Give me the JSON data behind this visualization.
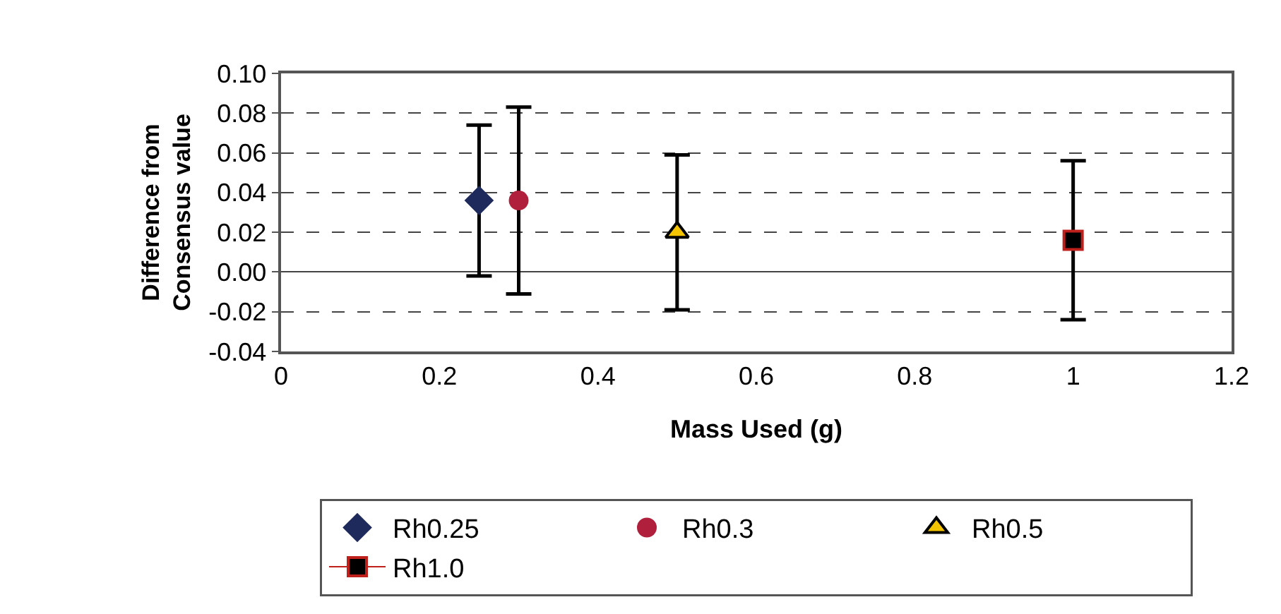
{
  "chart_data": {
    "type": "scatter",
    "xlabel": "Mass Used (g)",
    "ylabel": "Difference from Consensus value",
    "xlim": [
      0,
      1.2
    ],
    "xticks": [
      0,
      0.2,
      0.4,
      0.6,
      0.8,
      1,
      1.2
    ],
    "ylim": [
      -0.04,
      0.1
    ],
    "yticks": [
      {
        "value": -0.04,
        "label": "-0.04"
      },
      {
        "value": -0.02,
        "label": "-0.02"
      },
      {
        "value": 0,
        "label": "0.00"
      },
      {
        "value": 0.02,
        "label": "0.02"
      },
      {
        "value": 0.04,
        "label": "0.04"
      },
      {
        "value": 0.06,
        "label": "0.06"
      },
      {
        "value": 0.08,
        "label": "0.08"
      },
      {
        "value": 0.1,
        "label": "0.10"
      }
    ],
    "grid": "y",
    "legend": "bottom",
    "series": [
      {
        "name": "Rh0.25",
        "color": "#1f2a5c",
        "marker": "diamond",
        "x": [
          0.25
        ],
        "values": [
          0.036
        ],
        "errors": [
          0.038
        ]
      },
      {
        "name": "Rh0.3",
        "color": "#b0203c",
        "marker": "circle",
        "x": [
          0.3
        ],
        "values": [
          0.036
        ],
        "errors": [
          0.047
        ]
      },
      {
        "name": "Rh0.5",
        "color": "#f5c400",
        "marker": "triangle",
        "x": [
          0.5
        ],
        "values": [
          0.02
        ],
        "errors": [
          0.039
        ]
      },
      {
        "name": "Rh1.0",
        "color": "#000000",
        "marker": "square",
        "line_style": "solid",
        "x": [
          1
        ],
        "values": [
          0.016
        ],
        "errors": [
          0.04
        ]
      }
    ]
  }
}
